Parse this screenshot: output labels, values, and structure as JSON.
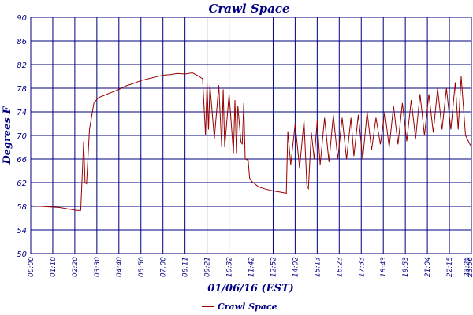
{
  "chart_data": {
    "type": "line",
    "title": "Crawl Space",
    "xlabel": "01/06/16 (EST)",
    "ylabel": "Degrees F",
    "ylim": [
      50,
      90
    ],
    "yticks": [
      "50",
      "54",
      "58",
      "62",
      "66",
      "70",
      "74",
      "78",
      "82",
      "86",
      "90"
    ],
    "xticks": [
      "00:00",
      "01:10",
      "02:20",
      "03:30",
      "04:40",
      "05:50",
      "07:00",
      "08:11",
      "09:21",
      "10:32",
      "11:42",
      "12:52",
      "14:02",
      "15:13",
      "16:23",
      "17:33",
      "18:43",
      "19:53",
      "21:04",
      "22:15",
      "23:25",
      "23:56"
    ],
    "grid": true,
    "legend_position": "bottom-left",
    "series": [
      {
        "name": "Crawl Space",
        "color": "#990000",
        "x": [
          0,
          40,
          62,
          68,
          72,
          74,
          76,
          80,
          86,
          92,
          100,
          110,
          120,
          130,
          140,
          150,
          160,
          170,
          180,
          190,
          200,
          210,
          220,
          228,
          234,
          238,
          240,
          242,
          244,
          250,
          256,
          260,
          262,
          264,
          270,
          276,
          278,
          280,
          282,
          286,
          288,
          290,
          292,
          296,
          298,
          300,
          302,
          304,
          310,
          320,
          330,
          340,
          348,
          350,
          354,
          360,
          366,
          372,
          376,
          378,
          382,
          386,
          390,
          394,
          400,
          406,
          412,
          418,
          424,
          430,
          436,
          440,
          446,
          452,
          458,
          464,
          470,
          476,
          482,
          488,
          494,
          500,
          506,
          512,
          518,
          524,
          530,
          536,
          542,
          548,
          554,
          560,
          566,
          572,
          578,
          582,
          586,
          592,
          600
        ],
        "y": [
          58.1,
          57.8,
          57.3,
          57.3,
          69,
          62,
          61.8,
          71,
          75.5,
          76.4,
          76.8,
          77.3,
          77.8,
          78.4,
          78.8,
          79.3,
          79.6,
          79.9,
          80.2,
          80.3,
          80.5,
          80.4,
          80.6,
          80.1,
          79.6,
          70,
          79,
          71,
          78.5,
          69.5,
          78.5,
          68,
          77.8,
          68,
          77,
          67,
          76,
          67,
          75,
          69,
          68.5,
          75.5,
          66,
          65.8,
          62.8,
          62.3,
          62.1,
          61.9,
          61.3,
          60.9,
          60.6,
          60.4,
          60.2,
          70.7,
          65,
          72,
          64.5,
          72.5,
          61.5,
          61,
          70.5,
          66,
          72.5,
          65,
          73,
          65.5,
          73.5,
          66,
          73,
          66,
          73,
          66.5,
          73.5,
          66,
          74,
          67.5,
          73,
          68.5,
          74,
          68,
          75,
          68.5,
          75.5,
          69,
          76,
          69.5,
          77,
          70,
          77,
          70.5,
          78,
          71,
          78,
          71,
          79,
          71,
          80,
          70,
          68
        ]
      }
    ]
  }
}
